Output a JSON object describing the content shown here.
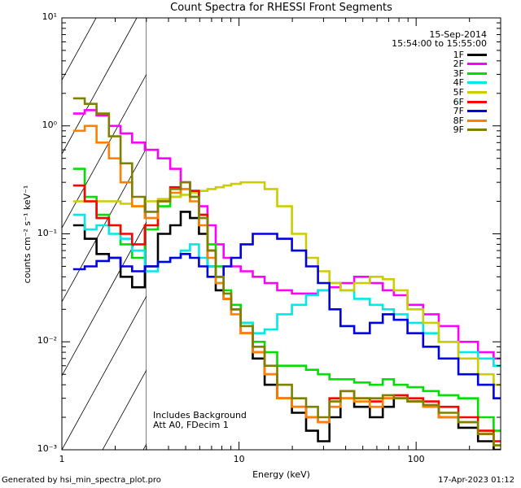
{
  "chart_data": {
    "type": "line",
    "title": "Count Spectra for RHESSI Front Segments",
    "xlabel": "Energy (keV)",
    "ylabel": "counts cm⁻² s⁻¹ keV⁻¹",
    "xscale": "log",
    "yscale": "log",
    "xlim": [
      1,
      300
    ],
    "ylim": [
      0.001,
      10
    ],
    "xtick_labels": [
      "1",
      "10",
      "100"
    ],
    "ytick_labels": [
      "10⁻³",
      "10⁻²",
      "10⁻¹",
      "10⁰",
      "10¹"
    ],
    "date": "15-Sep-2014",
    "time_range": "15:54:00 to 15:55:00",
    "annotations": [
      "Includes Background",
      "Att A0, FDecim 1"
    ],
    "shaded_region_keV": [
      1,
      3
    ],
    "legend_placement": "top-right",
    "series": [
      {
        "name": "1F",
        "color": "#000000",
        "x": [
          1.25,
          1.45,
          1.7,
          2.0,
          2.3,
          2.7,
          3.2,
          3.8,
          4.4,
          5.0,
          5.6,
          6.3,
          7.0,
          7.8,
          8.6,
          9.5,
          11,
          13,
          15,
          18,
          22,
          26,
          30,
          35,
          40,
          50,
          60,
          70,
          80,
          100,
          120,
          150,
          200,
          250,
          300
        ],
        "y": [
          0.12,
          0.09,
          0.065,
          0.06,
          0.04,
          0.032,
          0.05,
          0.1,
          0.12,
          0.16,
          0.14,
          0.1,
          0.05,
          0.03,
          0.025,
          0.02,
          0.012,
          0.007,
          0.004,
          0.003,
          0.0022,
          0.0015,
          0.0012,
          0.002,
          0.003,
          0.0025,
          0.002,
          0.0025,
          0.003,
          0.0028,
          0.0025,
          0.002,
          0.0016,
          0.0012,
          0.001
        ]
      },
      {
        "name": "2F",
        "color": "#ff00ff",
        "x": [
          1.25,
          1.45,
          1.7,
          2.0,
          2.3,
          2.7,
          3.2,
          3.8,
          4.4,
          5.0,
          5.6,
          6.3,
          7.0,
          7.8,
          8.6,
          9.5,
          11,
          13,
          15,
          18,
          22,
          26,
          30,
          35,
          40,
          50,
          60,
          70,
          80,
          100,
          120,
          150,
          200,
          250,
          300
        ],
        "y": [
          1.3,
          1.4,
          1.25,
          1.0,
          0.85,
          0.7,
          0.6,
          0.5,
          0.4,
          0.3,
          0.25,
          0.18,
          0.12,
          0.08,
          0.06,
          0.05,
          0.045,
          0.04,
          0.035,
          0.03,
          0.028,
          0.028,
          0.03,
          0.032,
          0.035,
          0.04,
          0.035,
          0.03,
          0.027,
          0.022,
          0.018,
          0.014,
          0.01,
          0.008,
          0.007
        ]
      },
      {
        "name": "3F",
        "color": "#00e000",
        "x": [
          1.25,
          1.45,
          1.7,
          2.0,
          2.3,
          2.7,
          3.2,
          3.8,
          4.4,
          5.0,
          5.6,
          6.3,
          7.0,
          7.8,
          8.6,
          9.5,
          11,
          13,
          15,
          18,
          22,
          26,
          30,
          35,
          40,
          50,
          60,
          70,
          80,
          100,
          120,
          150,
          200,
          250,
          300
        ],
        "y": [
          0.4,
          0.22,
          0.15,
          0.12,
          0.08,
          0.06,
          0.11,
          0.18,
          0.22,
          0.26,
          0.22,
          0.15,
          0.08,
          0.05,
          0.03,
          0.022,
          0.015,
          0.01,
          0.008,
          0.006,
          0.006,
          0.0055,
          0.005,
          0.0045,
          0.0045,
          0.0042,
          0.004,
          0.0045,
          0.004,
          0.0038,
          0.0035,
          0.0032,
          0.003,
          0.002,
          0.0015
        ]
      },
      {
        "name": "4F",
        "color": "#00e8e8",
        "x": [
          1.25,
          1.45,
          1.7,
          2.0,
          2.3,
          2.7,
          3.2,
          3.8,
          4.4,
          5.0,
          5.6,
          6.3,
          7.0,
          7.8,
          8.6,
          9.5,
          11,
          13,
          15,
          18,
          22,
          26,
          30,
          35,
          40,
          50,
          60,
          70,
          80,
          100,
          120,
          150,
          200,
          250,
          300
        ],
        "y": [
          0.15,
          0.11,
          0.12,
          0.1,
          0.09,
          0.07,
          0.045,
          0.055,
          0.06,
          0.07,
          0.08,
          0.06,
          0.05,
          0.035,
          0.025,
          0.02,
          0.015,
          0.012,
          0.013,
          0.018,
          0.022,
          0.027,
          0.03,
          0.035,
          0.03,
          0.025,
          0.022,
          0.02,
          0.018,
          0.015,
          0.012,
          0.01,
          0.008,
          0.007,
          0.006
        ]
      },
      {
        "name": "5F",
        "color": "#cccc00",
        "x": [
          1.25,
          1.45,
          1.7,
          2.0,
          2.3,
          2.7,
          3.2,
          3.8,
          4.4,
          5.0,
          5.6,
          6.3,
          7.0,
          7.8,
          8.6,
          9.5,
          11,
          13,
          15,
          18,
          22,
          26,
          30,
          35,
          40,
          50,
          60,
          70,
          80,
          100,
          120,
          150,
          200,
          250,
          300
        ],
        "y": [
          0.2,
          0.2,
          0.2,
          0.2,
          0.19,
          0.18,
          0.2,
          0.21,
          0.22,
          0.23,
          0.24,
          0.25,
          0.26,
          0.27,
          0.28,
          0.29,
          0.3,
          0.3,
          0.26,
          0.18,
          0.1,
          0.06,
          0.045,
          0.035,
          0.03,
          0.035,
          0.04,
          0.038,
          0.03,
          0.02,
          0.015,
          0.01,
          0.007,
          0.005,
          0.004
        ]
      },
      {
        "name": "6F",
        "color": "#ff0000",
        "x": [
          1.25,
          1.45,
          1.7,
          2.0,
          2.3,
          2.7,
          3.2,
          3.8,
          4.4,
          5.0,
          5.6,
          6.3,
          7.0,
          7.8,
          8.6,
          9.5,
          11,
          13,
          15,
          18,
          22,
          26,
          30,
          35,
          40,
          50,
          60,
          70,
          80,
          100,
          120,
          150,
          200,
          250,
          300
        ],
        "y": [
          0.28,
          0.2,
          0.14,
          0.12,
          0.1,
          0.08,
          0.12,
          0.2,
          0.27,
          0.3,
          0.25,
          0.15,
          0.07,
          0.04,
          0.025,
          0.02,
          0.012,
          0.008,
          0.005,
          0.003,
          0.0025,
          0.002,
          0.0018,
          0.003,
          0.0035,
          0.003,
          0.0028,
          0.003,
          0.0032,
          0.003,
          0.0028,
          0.0025,
          0.002,
          0.0015,
          0.0012
        ]
      },
      {
        "name": "7F",
        "color": "#0000e0",
        "x": [
          1.25,
          1.45,
          1.7,
          2.0,
          2.3,
          2.7,
          3.2,
          3.8,
          4.4,
          5.0,
          5.6,
          6.3,
          7.0,
          7.8,
          8.6,
          9.5,
          11,
          13,
          15,
          18,
          22,
          26,
          30,
          35,
          40,
          50,
          60,
          70,
          80,
          100,
          120,
          150,
          200,
          250,
          300
        ],
        "y": [
          0.047,
          0.05,
          0.056,
          0.06,
          0.05,
          0.045,
          0.05,
          0.055,
          0.06,
          0.065,
          0.06,
          0.05,
          0.04,
          0.04,
          0.05,
          0.06,
          0.08,
          0.1,
          0.1,
          0.09,
          0.07,
          0.05,
          0.035,
          0.02,
          0.014,
          0.012,
          0.015,
          0.018,
          0.016,
          0.012,
          0.009,
          0.007,
          0.005,
          0.004,
          0.003
        ]
      },
      {
        "name": "8F",
        "color": "#ff8000",
        "x": [
          1.25,
          1.45,
          1.7,
          2.0,
          2.3,
          2.7,
          3.2,
          3.8,
          4.4,
          5.0,
          5.6,
          6.3,
          7.0,
          7.8,
          8.6,
          9.5,
          11,
          13,
          15,
          18,
          22,
          26,
          30,
          35,
          40,
          50,
          60,
          70,
          80,
          100,
          120,
          150,
          200,
          250,
          300
        ],
        "y": [
          0.9,
          1.0,
          0.7,
          0.5,
          0.3,
          0.18,
          0.14,
          0.2,
          0.24,
          0.26,
          0.2,
          0.12,
          0.06,
          0.035,
          0.025,
          0.018,
          0.012,
          0.008,
          0.005,
          0.003,
          0.0025,
          0.002,
          0.0018,
          0.0025,
          0.003,
          0.0028,
          0.0025,
          0.003,
          0.003,
          0.0028,
          0.0025,
          0.002,
          0.0018,
          0.0014,
          0.0011
        ]
      },
      {
        "name": "9F",
        "color": "#808000",
        "x": [
          1.25,
          1.45,
          1.7,
          2.0,
          2.3,
          2.7,
          3.2,
          3.8,
          4.4,
          5.0,
          5.6,
          6.3,
          7.0,
          7.8,
          8.6,
          9.5,
          11,
          13,
          15,
          18,
          22,
          26,
          30,
          35,
          40,
          50,
          60,
          70,
          80,
          100,
          120,
          150,
          200,
          250,
          300
        ],
        "y": [
          1.8,
          1.6,
          1.3,
          0.8,
          0.45,
          0.22,
          0.16,
          0.2,
          0.26,
          0.3,
          0.22,
          0.14,
          0.07,
          0.04,
          0.028,
          0.02,
          0.014,
          0.009,
          0.006,
          0.004,
          0.003,
          0.0025,
          0.002,
          0.0028,
          0.0035,
          0.003,
          0.003,
          0.0032,
          0.003,
          0.0028,
          0.0026,
          0.0022,
          0.0018,
          0.0014,
          0.0011
        ]
      }
    ]
  },
  "footer": {
    "generated_by": "Generated by hsi_min_spectra_plot.pro",
    "timestamp": "17-Apr-2023 01:12"
  }
}
